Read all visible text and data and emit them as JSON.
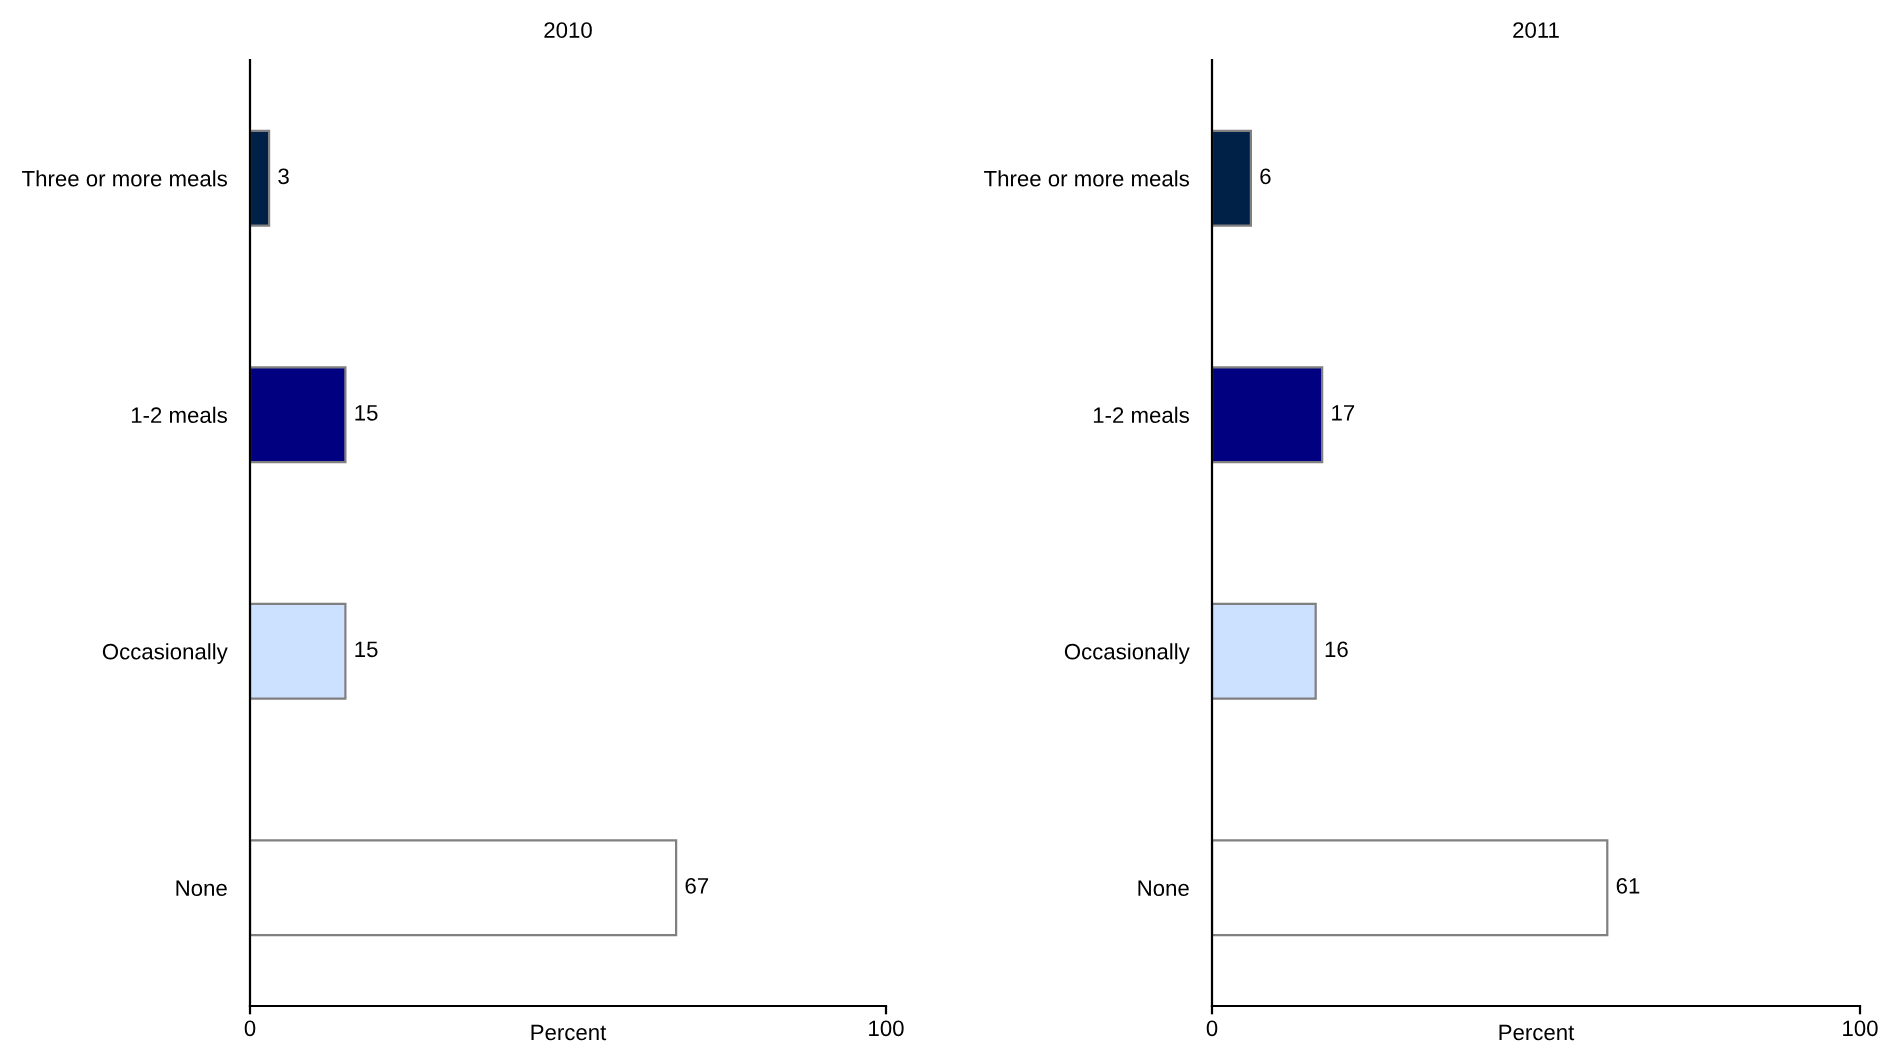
{
  "chart_data": [
    {
      "type": "bar",
      "orientation": "horizontal",
      "title": "2010",
      "xlabel": "Percent",
      "categories": [
        "Three or more meals",
        "1-2 meals",
        "Occasionally",
        "None"
      ],
      "values": [
        3,
        15,
        15,
        67
      ],
      "colors": [
        "#002147",
        "#000080",
        "#cce0ff",
        "#ffffff"
      ],
      "xlim": [
        0,
        100
      ],
      "xticks": [
        0,
        100
      ],
      "data_labels": true,
      "grid": false,
      "legend": false
    },
    {
      "type": "bar",
      "orientation": "horizontal",
      "title": "2011",
      "xlabel": "Percent",
      "categories": [
        "Three or more meals",
        "1-2 meals",
        "Occasionally",
        "None"
      ],
      "values": [
        6,
        17,
        16,
        61
      ],
      "colors": [
        "#002147",
        "#000080",
        "#cce0ff",
        "#ffffff"
      ],
      "xlim": [
        0,
        100
      ],
      "xticks": [
        0,
        100
      ],
      "data_labels": true,
      "grid": false,
      "legend": false
    }
  ]
}
